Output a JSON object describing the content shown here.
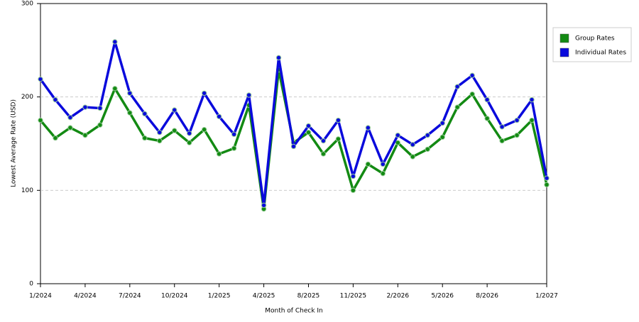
{
  "chart_data": {
    "type": "line",
    "x_label": "Month of Check In",
    "y_label": "Lowest Average Rate (USD)",
    "categories": [
      "1/2024",
      null,
      null,
      "4/2024",
      null,
      null,
      "7/2024",
      null,
      null,
      "10/2024",
      null,
      null,
      "1/2025",
      null,
      null,
      "4/2025",
      null,
      null,
      "8/2025",
      null,
      null,
      "11/2025",
      null,
      null,
      "2/2026",
      null,
      null,
      "5/2026",
      null,
      null,
      "8/2026",
      null,
      null,
      null,
      "1/2027"
    ],
    "series": [
      {
        "name": "Group Rates",
        "color": "#138a13",
        "values": [
          175,
          156,
          167,
          159,
          170,
          209,
          183,
          156,
          153,
          164,
          151,
          165,
          139,
          145,
          191,
          80,
          229,
          151,
          162,
          139,
          155,
          100,
          128,
          118,
          151,
          136,
          144,
          157,
          189,
          203,
          177,
          153,
          159,
          175,
          106
        ]
      },
      {
        "name": "Individual Rates",
        "color": "#0a0adc",
        "values": [
          219,
          197,
          178,
          189,
          188,
          259,
          204,
          182,
          162,
          186,
          161,
          204,
          179,
          160,
          202,
          84,
          242,
          147,
          169,
          153,
          175,
          115,
          167,
          128,
          159,
          149,
          159,
          172,
          211,
          223,
          197,
          168,
          175,
          197,
          113
        ]
      }
    ],
    "ylim": [
      0,
      300
    ],
    "yticks": [
      0,
      100,
      200,
      300
    ],
    "grid": true,
    "legend": "top-right"
  }
}
